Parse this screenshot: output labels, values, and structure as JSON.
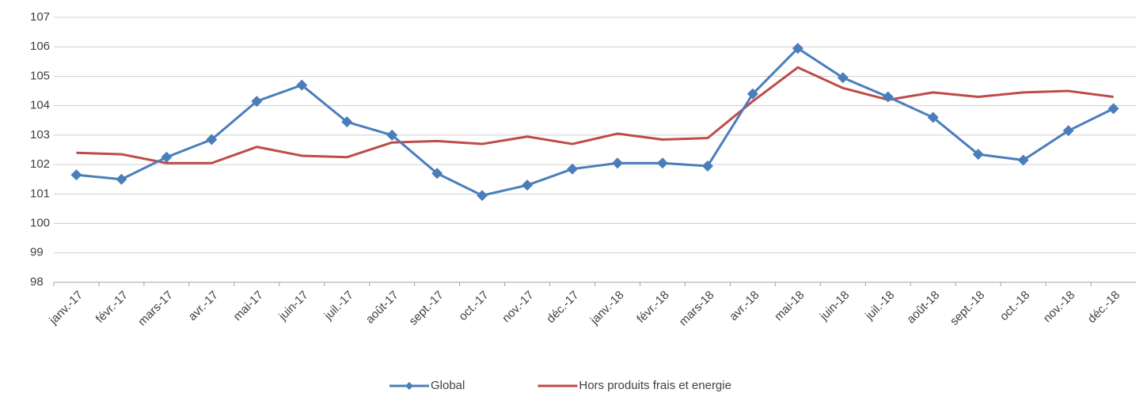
{
  "chart_data": {
    "type": "line",
    "categories": [
      "janv.-17",
      "févr.-17",
      "mars-17",
      "avr.-17",
      "mai-17",
      "juin-17",
      "juil.-17",
      "août-17",
      "sept.-17",
      "oct.-17",
      "nov.-17",
      "déc.-17",
      "janv.-18",
      "févr.-18",
      "mars-18",
      "avr.-18",
      "mai-18",
      "juin-18",
      "juil.-18",
      "août-18",
      "sept.-18",
      "oct.-18",
      "nov.-18",
      "déc.-18"
    ],
    "series": [
      {
        "name": "Global",
        "color": "#4a7ebb",
        "marker": "diamond",
        "values": [
          101.65,
          101.5,
          102.25,
          102.85,
          104.15,
          104.7,
          103.45,
          103.0,
          101.7,
          100.95,
          101.3,
          101.85,
          102.05,
          102.05,
          101.95,
          104.4,
          105.95,
          104.95,
          104.3,
          103.6,
          102.35,
          102.15,
          103.15,
          103.9
        ]
      },
      {
        "name": "Hors produits frais et energie",
        "color": "#be4b48",
        "values": [
          102.4,
          102.35,
          102.05,
          102.05,
          102.6,
          102.3,
          102.25,
          102.75,
          102.8,
          102.7,
          102.95,
          102.7,
          103.05,
          102.85,
          102.9,
          104.15,
          105.3,
          104.6,
          104.2,
          104.45,
          104.3,
          104.45,
          104.5,
          104.3
        ]
      }
    ],
    "ylim": [
      98,
      107
    ],
    "yticks": [
      98,
      99,
      100,
      101,
      102,
      103,
      104,
      105,
      106,
      107
    ],
    "grid": true,
    "legend": "bottom"
  }
}
